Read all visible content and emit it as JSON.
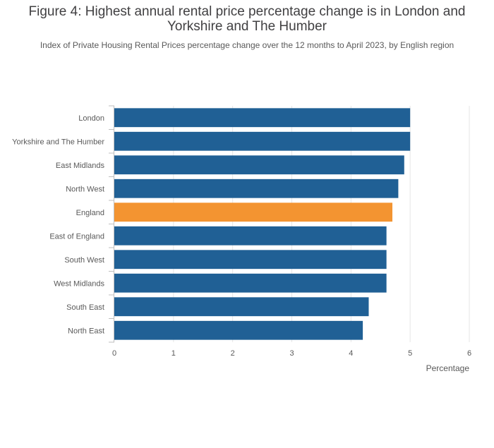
{
  "title": "Figure 4: Highest annual rental price percentage change is in London and Yorkshire and The Humber",
  "subtitle": "Index of Private Housing Rental Prices percentage change over the 12 months to April 2023, by English region",
  "chart_data": {
    "type": "bar",
    "orientation": "horizontal",
    "categories": [
      "London",
      "Yorkshire and The Humber",
      "East Midlands",
      "North West",
      "England",
      "East of England",
      "South West",
      "West Midlands",
      "South East",
      "North East"
    ],
    "values": [
      5.0,
      5.0,
      4.9,
      4.8,
      4.7,
      4.6,
      4.6,
      4.6,
      4.3,
      4.2
    ],
    "highlight": "England",
    "colors": {
      "bar": "#206095",
      "highlight": "#f39431",
      "grid": "#e6e6e6"
    },
    "xlabel": "Percentage",
    "ylabel": "",
    "xlim": [
      0,
      6
    ],
    "xticks": [
      0,
      1,
      2,
      3,
      4,
      5,
      6
    ],
    "grid": true
  }
}
